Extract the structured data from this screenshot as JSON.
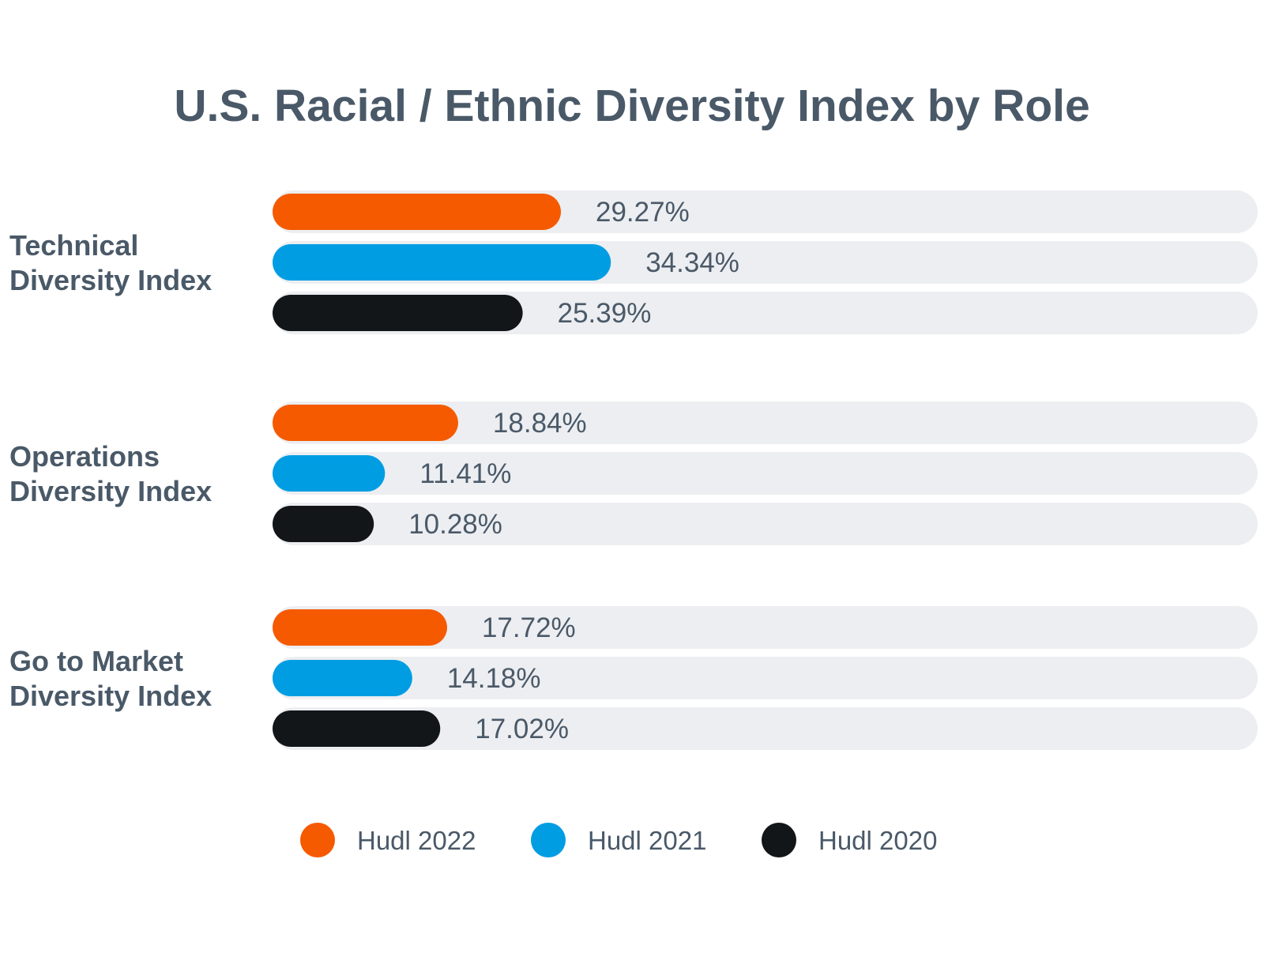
{
  "chart_data": {
    "type": "bar",
    "orientation": "horizontal",
    "title": "U.S. Racial / Ethnic Diversity Index by Role",
    "categories": [
      [
        "Technical",
        "Diversity Index"
      ],
      [
        "Operations",
        "Diversity Index"
      ],
      [
        "Go to Market",
        "Diversity Index"
      ]
    ],
    "series": [
      {
        "name": "Hudl 2022",
        "color": "#f55a00",
        "values": [
          29.27,
          18.84,
          17.72
        ],
        "labels": [
          "29.27%",
          "18.84%",
          "17.72%"
        ]
      },
      {
        "name": "Hudl 2021",
        "color": "#009de3",
        "values": [
          34.34,
          11.41,
          14.18
        ],
        "labels": [
          "34.34%",
          "11.41%",
          "14.18%"
        ]
      },
      {
        "name": "Hudl 2020",
        "color": "#121619",
        "values": [
          25.39,
          10.28,
          17.02
        ],
        "labels": [
          "25.39%",
          "10.28%",
          "17.02%"
        ]
      }
    ],
    "xlim": [
      0,
      100
    ],
    "track_color": "#eceef1",
    "grid": false,
    "legend_position": "bottom"
  }
}
